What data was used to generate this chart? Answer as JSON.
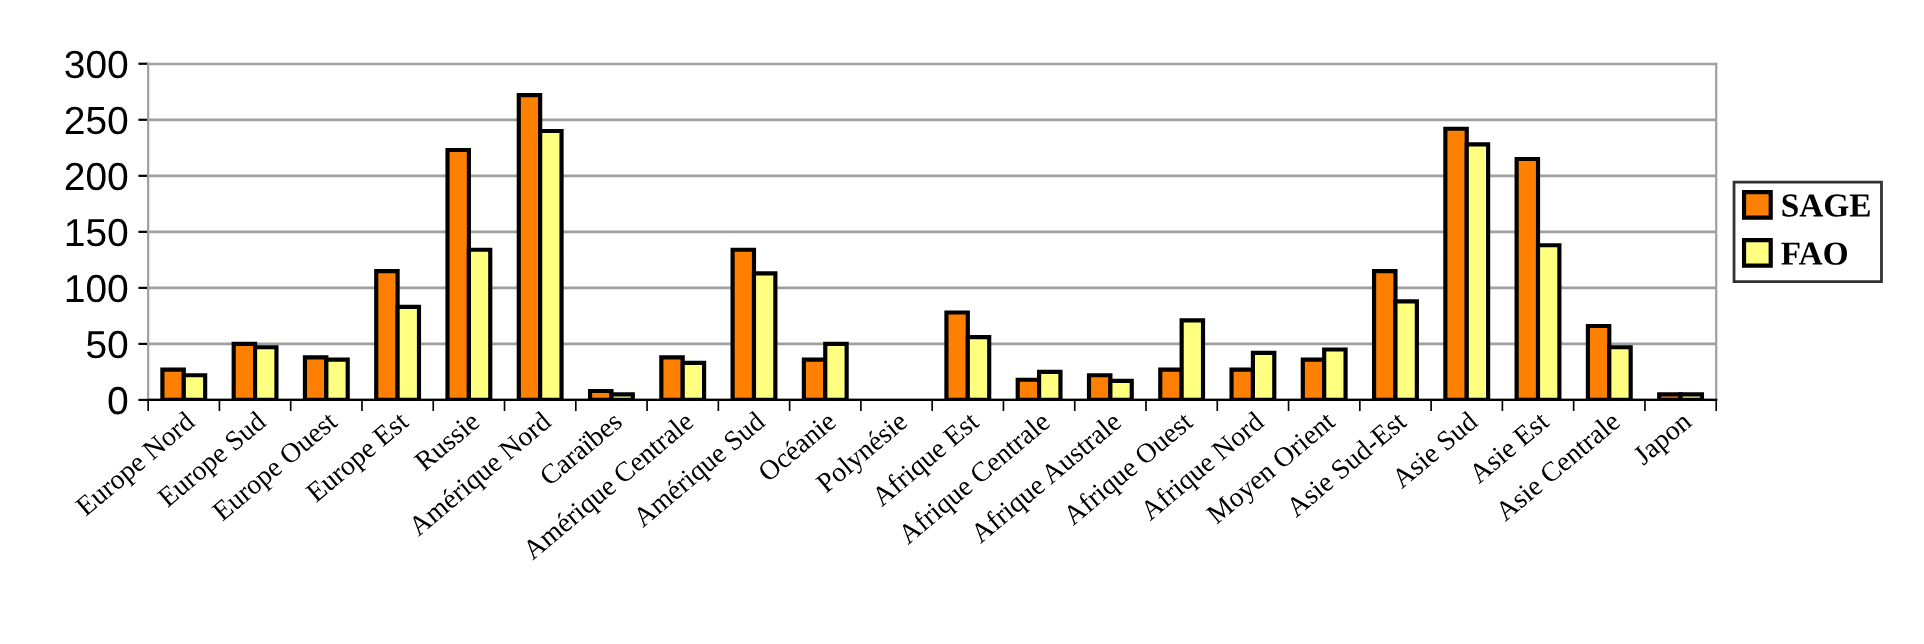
{
  "chart_data": {
    "type": "bar",
    "categories": [
      "Europe Nord",
      "Europe Sud",
      "Europe Ouest",
      "Europe Est",
      "Russie",
      "Amérique Nord",
      "Caraïbes",
      "Amérique Centrale",
      "Amérique Sud",
      "Océanie",
      "Polynésie",
      "Afrique Est",
      "Afrique Centrale",
      "Afrique Australe",
      "Afrique Ouest",
      "Afrique Nord",
      "Moyen Orient",
      "Asie Sud-Est",
      "Asie Sud",
      "Asie Est",
      "Asie Centrale",
      "Japon"
    ],
    "series": [
      {
        "name": "SAGE",
        "color": "#ff8000",
        "values": [
          27,
          50,
          38,
          115,
          223,
          272,
          8,
          38,
          134,
          36,
          null,
          78,
          18,
          22,
          27,
          27,
          36,
          115,
          242,
          215,
          66,
          5
        ]
      },
      {
        "name": "FAO",
        "color": "#ffff80",
        "values": [
          22,
          47,
          36,
          83,
          134,
          240,
          5,
          33,
          113,
          50,
          null,
          56,
          25,
          17,
          71,
          42,
          45,
          88,
          228,
          138,
          47,
          5
        ]
      }
    ],
    "ylim": [
      0,
      300
    ],
    "yticks": [
      0,
      50,
      100,
      150,
      200,
      250,
      300
    ],
    "grid": "y",
    "legend": "right"
  }
}
